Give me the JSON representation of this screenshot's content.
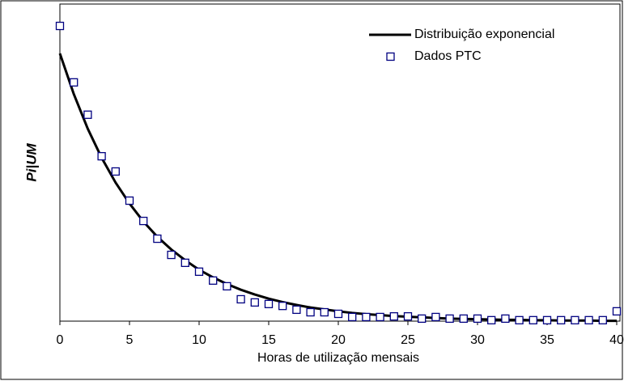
{
  "chart_data": {
    "type": "line",
    "xlabel": "Horas de utilização mensais",
    "ylabel": "Pi|UM",
    "xlim": [
      0,
      40
    ],
    "ylim": [
      0,
      1
    ],
    "xticks": [
      0,
      5,
      10,
      15,
      20,
      25,
      30,
      35,
      40
    ],
    "legend": "upper right",
    "x": [
      0,
      1,
      2,
      3,
      4,
      5,
      6,
      7,
      8,
      9,
      10,
      11,
      12,
      13,
      14,
      15,
      16,
      17,
      18,
      19,
      20,
      21,
      22,
      23,
      24,
      25,
      26,
      27,
      28,
      29,
      30,
      31,
      32,
      33,
      34,
      35,
      36,
      37,
      38,
      39,
      40
    ],
    "series": [
      {
        "name": "Distribuição exponencial",
        "type": "line",
        "color": "#000000",
        "values": [
          0.844,
          0.716,
          0.607,
          0.515,
          0.437,
          0.371,
          0.314,
          0.266,
          0.226,
          0.192,
          0.162,
          0.138,
          0.117,
          0.099,
          0.084,
          0.071,
          0.06,
          0.051,
          0.043,
          0.037,
          0.031,
          0.026,
          0.022,
          0.019,
          0.016,
          0.014,
          0.012,
          0.01,
          0.008,
          0.007,
          0.006,
          0.005,
          0.004,
          0.004,
          0.003,
          0.003,
          0.002,
          0.002,
          0.002,
          0.001,
          0.001
        ]
      },
      {
        "name": "Dados PTC",
        "type": "scatter",
        "color": "#000080",
        "values": [
          0.931,
          0.753,
          0.651,
          0.52,
          0.472,
          0.38,
          0.316,
          0.26,
          0.209,
          0.184,
          0.156,
          0.128,
          0.11,
          0.069,
          0.059,
          0.054,
          0.048,
          0.036,
          0.028,
          0.028,
          0.023,
          0.013,
          0.013,
          0.013,
          0.015,
          0.015,
          0.008,
          0.013,
          0.008,
          0.008,
          0.008,
          0.003,
          0.008,
          0.003,
          0.003,
          0.003,
          0.003,
          0.003,
          0.003,
          0.003,
          0.031
        ]
      }
    ]
  }
}
